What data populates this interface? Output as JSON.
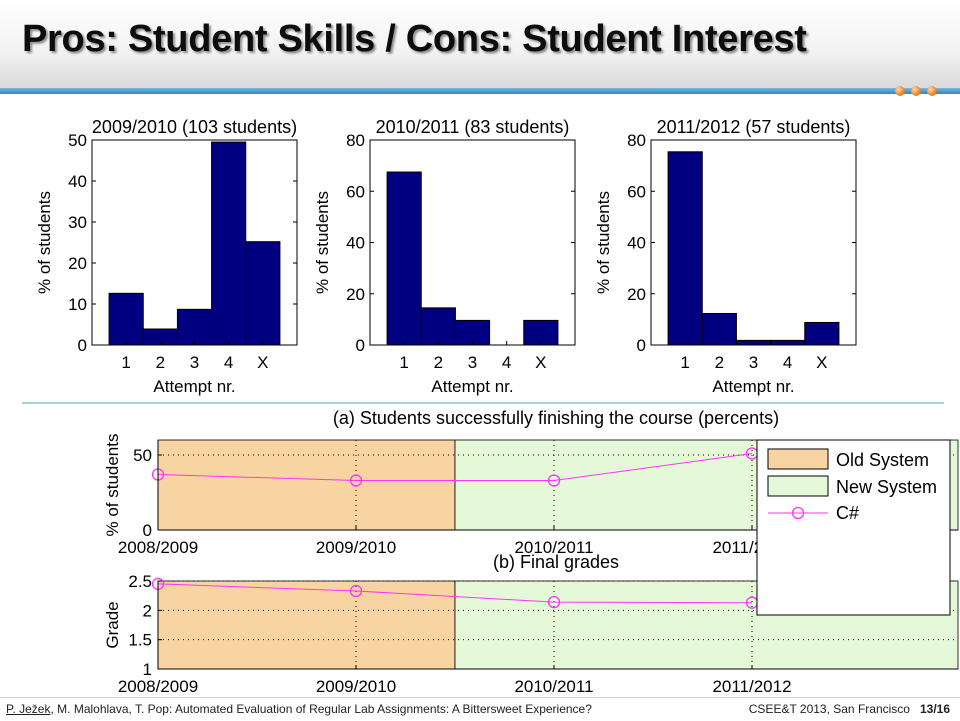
{
  "slide": {
    "title": "Pros: Student Skills / Cons: Student Interest"
  },
  "footer": {
    "first_author": "P. Ježek",
    "authors_rest": ", M. Malohlava, T. Pop: Automated Evaluation of Regular Lab Assignments: A Bittersweet Experience?",
    "conference": "CSEE&T 2013,  San Francisco",
    "page": "13/16"
  },
  "colors": {
    "bar": "#000080",
    "old_system": "#f7d4a1",
    "new_system": "#e5f8d7",
    "line": "#ff33ff"
  },
  "chart_data": [
    {
      "type": "bar",
      "title": "2009/2010 (103 students)",
      "xlabel": "Attempt nr.",
      "ylabel": "% of students",
      "categories": [
        "1",
        "2",
        "3",
        "4",
        "X"
      ],
      "values": [
        12.6,
        3.9,
        8.7,
        49.5,
        25.2
      ],
      "ylim": [
        0,
        50
      ],
      "yticks": [
        "0",
        "10",
        "20",
        "30",
        "40",
        "50"
      ]
    },
    {
      "type": "bar",
      "title": "2010/2011 (83 students)",
      "xlabel": "Attempt nr.",
      "ylabel": "% of students",
      "categories": [
        "1",
        "2",
        "3",
        "4",
        "X"
      ],
      "values": [
        67.5,
        14.5,
        9.6,
        0,
        9.6
      ],
      "ylim": [
        0,
        80
      ],
      "yticks": [
        "0",
        "20",
        "40",
        "60",
        "80"
      ]
    },
    {
      "type": "bar",
      "title": "2011/2012 (57 students)",
      "xlabel": "Attempt nr.",
      "ylabel": "% of students",
      "categories": [
        "1",
        "2",
        "3",
        "4",
        "X"
      ],
      "values": [
        75.4,
        12.3,
        1.8,
        1.8,
        8.8
      ],
      "ylim": [
        0,
        80
      ],
      "yticks": [
        "0",
        "20",
        "40",
        "60",
        "80"
      ]
    },
    {
      "type": "line",
      "title": "(a) Students successfully finishing the course (percents)",
      "ylabel": "% of students",
      "x": [
        "2008/2009",
        "2009/2010",
        "2010/2011",
        "2011/2012"
      ],
      "series": [
        {
          "name": "C#",
          "values": [
            37,
            33,
            33,
            51
          ]
        }
      ],
      "ylim": [
        0,
        60
      ],
      "yticks": [
        "0",
        "50"
      ],
      "grid": true,
      "regions": [
        {
          "name": "Old System",
          "from": 0,
          "to": 1.5
        },
        {
          "name": "New System",
          "from": 1.5,
          "to": 3
        }
      ],
      "legend": [
        "Old System",
        "New System",
        "C#"
      ]
    },
    {
      "type": "line",
      "title": "(b) Final grades",
      "ylabel": "Grade",
      "x": [
        "2008/2009",
        "2009/2010",
        "2010/2011",
        "2011/2012"
      ],
      "series": [
        {
          "name": "C#",
          "values": [
            2.45,
            2.33,
            2.14,
            2.13
          ]
        }
      ],
      "ylim": [
        1,
        2.5
      ],
      "yticks": [
        "1",
        "1.5",
        "2",
        "2.5"
      ],
      "grid": true,
      "regions": [
        {
          "name": "Old System",
          "from": 0,
          "to": 1.5
        },
        {
          "name": "New System",
          "from": 1.5,
          "to": 3
        }
      ]
    }
  ]
}
